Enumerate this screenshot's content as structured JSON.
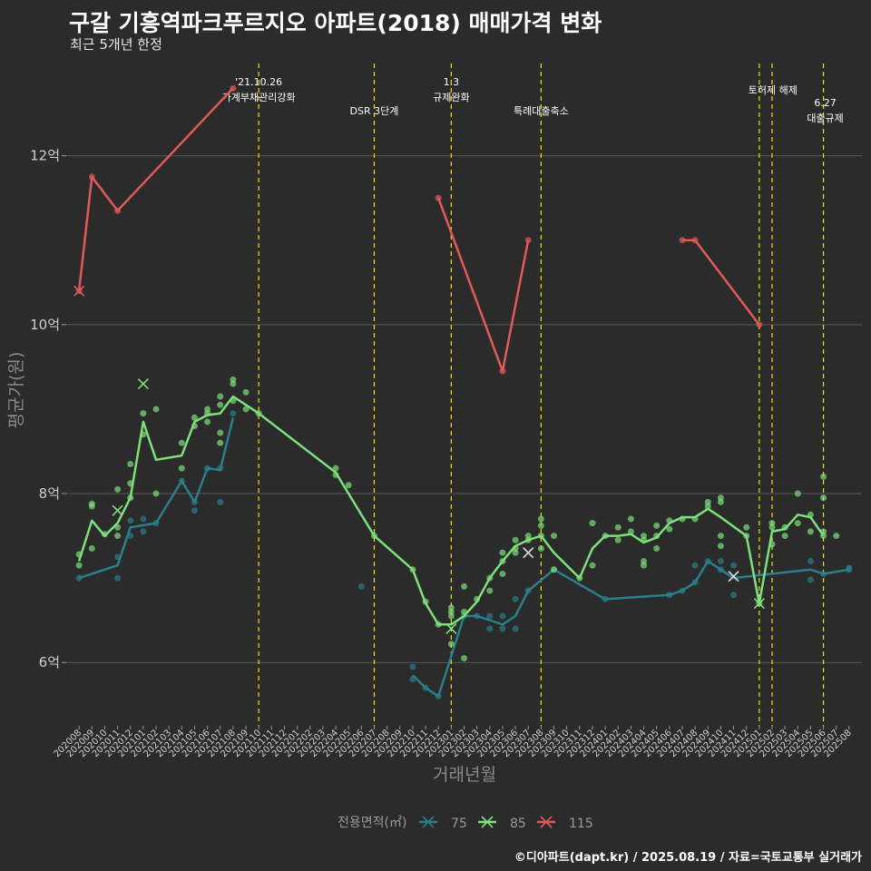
{
  "header": {
    "title": "구갈 기흥역파크푸르지오 아파트(2018) 매매가격 변화",
    "subtitle": "최근 5개년 한정"
  },
  "caption": "©디아파트(dapt.kr) / 2025.08.19 / 자료=국토교통부 실거래가",
  "colors": {
    "background": "#2b2b2b",
    "grid": "#5a5a5a",
    "event_line": "#e5e510",
    "s75": "#2a7f8a",
    "s85": "#7ee07a",
    "s115": "#e05a5a"
  },
  "chart_data": {
    "type": "line",
    "xlabel": "거래년월",
    "ylabel": "평균가(원)",
    "ylim": [
      5.25,
      13.2
    ],
    "y_ticks": [
      6,
      8,
      10,
      12
    ],
    "y_tick_labels": [
      "6억",
      "8억",
      "10억",
      "12억"
    ],
    "grid": true,
    "categories": [
      "202008",
      "202009",
      "202010",
      "202011",
      "202012",
      "202101",
      "202102",
      "202103",
      "202104",
      "202105",
      "202106",
      "202107",
      "202108",
      "202109",
      "202110",
      "202111",
      "202112",
      "202201",
      "202202",
      "202203",
      "202204",
      "202205",
      "202206",
      "202207",
      "202208",
      "202209",
      "202210",
      "202211",
      "202212",
      "202301",
      "202302",
      "202303",
      "202304",
      "202305",
      "202306",
      "202307",
      "202308",
      "202309",
      "202310",
      "202311",
      "202312",
      "202401",
      "202402",
      "202403",
      "202404",
      "202405",
      "202406",
      "202407",
      "202408",
      "202409",
      "202410",
      "202411",
      "202412",
      "202501",
      "202502",
      "202503",
      "202504",
      "202505",
      "202506",
      "202507",
      "202508"
    ],
    "legend": {
      "title": "전용면적(㎡)",
      "position": "bottom"
    },
    "series": [
      {
        "name": "75",
        "color": "#2a7f8a",
        "line": [
          [
            "202008",
            7.0
          ],
          [
            "202011",
            7.15
          ],
          [
            "202012",
            7.6
          ],
          [
            "202102",
            7.65
          ],
          [
            "202104",
            8.15
          ],
          [
            "202105",
            7.9
          ],
          [
            "202106",
            8.3
          ],
          [
            "202107",
            8.28
          ],
          [
            "202108",
            8.9
          ],
          [
            "202210",
            5.85
          ],
          [
            "202211",
            5.7
          ],
          [
            "202212",
            5.6
          ],
          [
            "202302",
            6.55
          ],
          [
            "202303",
            6.55
          ],
          [
            "202304",
            6.5
          ],
          [
            "202305",
            6.45
          ],
          [
            "202306",
            6.55
          ],
          [
            "202307",
            6.85
          ],
          [
            "202309",
            7.1
          ],
          [
            "202401",
            6.75
          ],
          [
            "202406",
            6.8
          ],
          [
            "202407",
            6.85
          ],
          [
            "202408",
            6.95
          ],
          [
            "202409",
            7.2
          ],
          [
            "202410",
            7.1
          ],
          [
            "202411",
            7.0
          ],
          [
            "202505",
            7.1
          ],
          [
            "202506",
            7.05
          ],
          [
            "202508",
            7.1
          ]
        ],
        "points": [
          [
            "202008",
            7.0
          ],
          [
            "202011",
            7.0
          ],
          [
            "202011",
            7.25
          ],
          [
            "202012",
            7.5
          ],
          [
            "202012",
            7.68
          ],
          [
            "202101",
            7.7
          ],
          [
            "202101",
            7.55
          ],
          [
            "202102",
            7.65
          ],
          [
            "202104",
            8.15
          ],
          [
            "202105",
            7.8
          ],
          [
            "202105",
            7.9
          ],
          [
            "202106",
            8.3
          ],
          [
            "202107",
            7.9
          ],
          [
            "202107",
            8.3
          ],
          [
            "202108",
            8.95
          ],
          [
            "202206",
            6.9
          ],
          [
            "202210",
            5.95
          ],
          [
            "202210",
            5.8
          ],
          [
            "202211",
            5.7
          ],
          [
            "202212",
            5.6
          ],
          [
            "202302",
            6.55
          ],
          [
            "202303",
            6.55
          ],
          [
            "202304",
            6.55
          ],
          [
            "202304",
            6.4
          ],
          [
            "202305",
            6.4
          ],
          [
            "202305",
            6.55
          ],
          [
            "202306",
            6.4
          ],
          [
            "202306",
            6.75
          ],
          [
            "202307",
            6.85
          ],
          [
            "202309",
            7.1
          ],
          [
            "202401",
            6.75
          ],
          [
            "202406",
            6.8
          ],
          [
            "202407",
            6.85
          ],
          [
            "202408",
            6.95
          ],
          [
            "202408",
            7.15
          ],
          [
            "202409",
            7.2
          ],
          [
            "202410",
            7.2
          ],
          [
            "202410",
            7.1
          ],
          [
            "202411",
            6.8
          ],
          [
            "202411",
            7.15
          ],
          [
            "202505",
            7.2
          ],
          [
            "202505",
            6.98
          ],
          [
            "202506",
            7.05
          ],
          [
            "202508",
            7.1
          ],
          [
            "202508",
            7.12
          ]
        ],
        "x_marks": [
          [
            "202307",
            7.3
          ],
          [
            "202411",
            7.02
          ]
        ]
      },
      {
        "name": "85",
        "color": "#7ee07a",
        "line": [
          [
            "202008",
            7.2
          ],
          [
            "202009",
            7.68
          ],
          [
            "202010",
            7.5
          ],
          [
            "202011",
            7.65
          ],
          [
            "202012",
            7.95
          ],
          [
            "202101",
            8.85
          ],
          [
            "202102",
            8.4
          ],
          [
            "202104",
            8.45
          ],
          [
            "202105",
            8.85
          ],
          [
            "202106",
            8.93
          ],
          [
            "202107",
            8.95
          ],
          [
            "202108",
            9.15
          ],
          [
            "202110",
            8.95
          ],
          [
            "202204",
            8.25
          ],
          [
            "202207",
            7.5
          ],
          [
            "202210",
            7.1
          ],
          [
            "202211",
            6.7
          ],
          [
            "202212",
            6.45
          ],
          [
            "202301",
            6.45
          ],
          [
            "202302",
            6.55
          ],
          [
            "202303",
            6.72
          ],
          [
            "202304",
            7.0
          ],
          [
            "202305",
            7.2
          ],
          [
            "202306",
            7.38
          ],
          [
            "202307",
            7.45
          ],
          [
            "202308",
            7.5
          ],
          [
            "202309",
            7.3
          ],
          [
            "202311",
            7.0
          ],
          [
            "202312",
            7.35
          ],
          [
            "202401",
            7.5
          ],
          [
            "202402",
            7.5
          ],
          [
            "202403",
            7.52
          ],
          [
            "202404",
            7.42
          ],
          [
            "202405",
            7.48
          ],
          [
            "202406",
            7.65
          ],
          [
            "202407",
            7.72
          ],
          [
            "202408",
            7.72
          ],
          [
            "202409",
            7.82
          ],
          [
            "202410",
            7.72
          ],
          [
            "202412",
            7.5
          ],
          [
            "202501",
            6.7
          ],
          [
            "202502",
            7.55
          ],
          [
            "202503",
            7.58
          ],
          [
            "202504",
            7.75
          ],
          [
            "202505",
            7.72
          ],
          [
            "202506",
            7.5
          ]
        ],
        "points": [
          [
            "202008",
            7.28
          ],
          [
            "202008",
            7.15
          ],
          [
            "202009",
            7.85
          ],
          [
            "202009",
            7.35
          ],
          [
            "202009",
            7.88
          ],
          [
            "202010",
            7.52
          ],
          [
            "202011",
            8.05
          ],
          [
            "202011",
            7.6
          ],
          [
            "202011",
            7.5
          ],
          [
            "202012",
            8.35
          ],
          [
            "202012",
            8.12
          ],
          [
            "202012",
            7.95
          ],
          [
            "202101",
            8.95
          ],
          [
            "202101",
            8.7
          ],
          [
            "202102",
            9.0
          ],
          [
            "202102",
            8.0
          ],
          [
            "202104",
            8.6
          ],
          [
            "202104",
            8.3
          ],
          [
            "202105",
            8.9
          ],
          [
            "202105",
            8.8
          ],
          [
            "202106",
            9.0
          ],
          [
            "202106",
            8.95
          ],
          [
            "202106",
            8.85
          ],
          [
            "202107",
            9.15
          ],
          [
            "202107",
            8.6
          ],
          [
            "202107",
            8.72
          ],
          [
            "202107",
            9.05
          ],
          [
            "202108",
            9.35
          ],
          [
            "202108",
            9.3
          ],
          [
            "202108",
            9.1
          ],
          [
            "202109",
            9.2
          ],
          [
            "202109",
            9.0
          ],
          [
            "202110",
            8.95
          ],
          [
            "202204",
            8.3
          ],
          [
            "202204",
            8.22
          ],
          [
            "202205",
            8.1
          ],
          [
            "202207",
            7.5
          ],
          [
            "202210",
            7.1
          ],
          [
            "202211",
            6.72
          ],
          [
            "202212",
            6.45
          ],
          [
            "202301",
            6.6
          ],
          [
            "202301",
            6.55
          ],
          [
            "202301",
            6.22
          ],
          [
            "202301",
            6.65
          ],
          [
            "202302",
            6.9
          ],
          [
            "202302",
            6.6
          ],
          [
            "202302",
            6.05
          ],
          [
            "202303",
            6.75
          ],
          [
            "202304",
            6.85
          ],
          [
            "202304",
            7.0
          ],
          [
            "202305",
            7.3
          ],
          [
            "202305",
            7.05
          ],
          [
            "202305",
            7.2
          ],
          [
            "202306",
            7.45
          ],
          [
            "202306",
            7.3
          ],
          [
            "202306",
            7.35
          ],
          [
            "202307",
            7.5
          ],
          [
            "202307",
            7.45
          ],
          [
            "202308",
            7.7
          ],
          [
            "202308",
            7.62
          ],
          [
            "202308",
            7.5
          ],
          [
            "202308",
            7.35
          ],
          [
            "202309",
            7.1
          ],
          [
            "202309",
            7.5
          ],
          [
            "202311",
            7.0
          ],
          [
            "202312",
            7.65
          ],
          [
            "202312",
            7.15
          ],
          [
            "202401",
            7.5
          ],
          [
            "202402",
            7.6
          ],
          [
            "202402",
            7.45
          ],
          [
            "202403",
            7.7
          ],
          [
            "202403",
            7.55
          ],
          [
            "202404",
            7.45
          ],
          [
            "202404",
            7.5
          ],
          [
            "202404",
            7.2
          ],
          [
            "202404",
            7.15
          ],
          [
            "202405",
            7.5
          ],
          [
            "202405",
            7.35
          ],
          [
            "202405",
            7.62
          ],
          [
            "202406",
            7.68
          ],
          [
            "202406",
            7.58
          ],
          [
            "202407",
            7.7
          ],
          [
            "202408",
            7.7
          ],
          [
            "202409",
            7.85
          ],
          [
            "202409",
            7.9
          ],
          [
            "202410",
            7.95
          ],
          [
            "202410",
            7.9
          ],
          [
            "202410",
            7.5
          ],
          [
            "202410",
            7.38
          ],
          [
            "202412",
            7.6
          ],
          [
            "202412",
            7.5
          ],
          [
            "202501",
            6.7
          ],
          [
            "202502",
            7.65
          ],
          [
            "202502",
            7.4
          ],
          [
            "202502",
            7.6
          ],
          [
            "202503",
            7.5
          ],
          [
            "202503",
            7.6
          ],
          [
            "202504",
            7.65
          ],
          [
            "202504",
            8.0
          ],
          [
            "202505",
            7.75
          ],
          [
            "202505",
            7.55
          ],
          [
            "202506",
            8.2
          ],
          [
            "202506",
            7.95
          ],
          [
            "202506",
            7.55
          ],
          [
            "202506",
            7.5
          ],
          [
            "202507",
            7.5
          ]
        ],
        "x_marks": [
          [
            "202011",
            7.8
          ],
          [
            "202101",
            9.3
          ],
          [
            "202301",
            6.4
          ],
          [
            "202501",
            6.7
          ]
        ]
      },
      {
        "name": "115",
        "color": "#e05a5a",
        "line": [
          [
            "202008",
            10.4
          ],
          [
            "202009",
            11.75
          ],
          [
            "202011",
            11.35
          ],
          [
            "202108",
            12.8
          ],
          [
            "202212",
            11.5
          ],
          [
            "202305",
            9.45
          ],
          [
            "202307",
            11.0
          ],
          [
            "202407",
            11.0
          ],
          [
            "202408",
            11.0
          ],
          [
            "202501",
            10.0
          ]
        ],
        "points": [
          [
            "202008",
            10.4
          ],
          [
            "202009",
            11.75
          ],
          [
            "202011",
            11.35
          ],
          [
            "202108",
            12.8
          ],
          [
            "202212",
            11.5
          ],
          [
            "202305",
            9.45
          ],
          [
            "202307",
            11.0
          ],
          [
            "202407",
            11.0
          ],
          [
            "202408",
            11.0
          ],
          [
            "202501",
            10.0
          ]
        ],
        "x_marks": [
          [
            "202008",
            10.4
          ]
        ]
      }
    ],
    "events": [
      {
        "at": "202110",
        "label1": "'21.10.26",
        "label2": "가계부채관리강화",
        "row": "top"
      },
      {
        "at": "202207",
        "label1": "",
        "label2": "DSR 3단계",
        "row": "low"
      },
      {
        "at": "202301",
        "label1": "1.3",
        "label2": "규제완화",
        "row": "top"
      },
      {
        "at": "202308",
        "label1": "",
        "label2": "특례대출축소",
        "row": "low"
      },
      {
        "at": "202501",
        "label1": "",
        "label2": "토허제 해제",
        "row": "mid"
      },
      {
        "at": "202502",
        "label1": "",
        "label2": "",
        "row": "none"
      },
      {
        "at": "202506",
        "label1": "6.27",
        "label2": "대출규제",
        "row": "right"
      }
    ]
  }
}
